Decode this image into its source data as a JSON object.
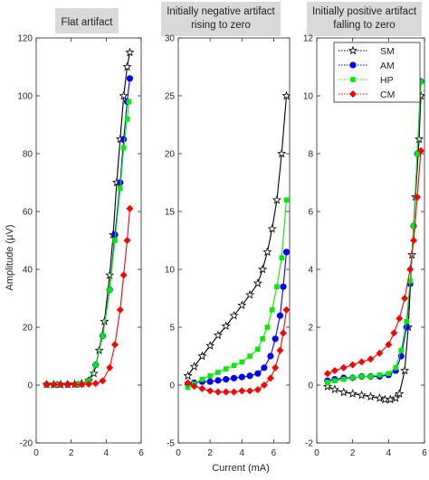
{
  "figure": {
    "ylabel": "Amplitude (µV)",
    "xlabel": "Current (mA)"
  },
  "colors": {
    "SM": "#000000",
    "AM": "#0000ff",
    "HP": "#00ee00",
    "CM": "#ff0000",
    "title_box": "#d9d9d9"
  },
  "chart_data": [
    {
      "type": "line",
      "title": "Flat artifact",
      "xlim": [
        0,
        6
      ],
      "ylim": [
        -20,
        120
      ],
      "xticks": [
        0,
        2,
        4,
        6
      ],
      "yticks": [
        -20,
        0,
        20,
        40,
        60,
        80,
        100,
        120
      ],
      "xtick_labels": [
        "0",
        "2",
        "4",
        "6"
      ],
      "ytick_labels": [
        "-20",
        "0",
        "20",
        "40",
        "60",
        "80",
        "100",
        "120"
      ],
      "grid": false,
      "series": [
        {
          "name": "SM",
          "marker": "star",
          "x": [
            0.6,
            1.0,
            1.4,
            1.8,
            2.2,
            2.6,
            3.0,
            3.3,
            3.6,
            3.9,
            4.2,
            4.4,
            4.6,
            4.8,
            5.0,
            5.2,
            5.35
          ],
          "y": [
            0.2,
            0.2,
            0.2,
            0.2,
            0.3,
            0.5,
            1.5,
            4,
            12,
            22,
            38,
            52,
            70,
            85,
            100,
            110,
            115
          ]
        },
        {
          "name": "AM",
          "marker": "circle",
          "x": [
            0.6,
            1.2,
            1.8,
            2.4,
            3.0,
            3.4,
            3.8,
            4.2,
            4.5,
            4.8,
            5.0,
            5.2,
            5.35
          ],
          "y": [
            0.2,
            0.2,
            0.2,
            0.3,
            1.5,
            7,
            17,
            33,
            52,
            70,
            85,
            98,
            106
          ]
        },
        {
          "name": "HP",
          "marker": "square",
          "x": [
            0.6,
            1.2,
            1.8,
            2.4,
            3.0,
            3.4,
            3.8,
            4.2,
            4.5,
            4.8,
            5.0,
            5.2,
            5.3
          ],
          "y": [
            0.2,
            0.2,
            0.2,
            0.3,
            1.5,
            7,
            17,
            33,
            50,
            68,
            82,
            92,
            98
          ]
        },
        {
          "name": "CM",
          "marker": "diamond",
          "x": [
            0.6,
            1.0,
            1.4,
            1.8,
            2.2,
            2.6,
            3.0,
            3.4,
            3.8,
            4.2,
            4.5,
            4.8,
            5.0,
            5.2,
            5.35
          ],
          "y": [
            0.2,
            0.2,
            0.2,
            0.2,
            0.2,
            0.2,
            0.3,
            0.6,
            1.5,
            6,
            14,
            26,
            38,
            50,
            61
          ]
        }
      ]
    },
    {
      "type": "line",
      "title": "Initially negative artifact rising to zero",
      "xlim": [
        0,
        7
      ],
      "ylim": [
        -5,
        30
      ],
      "xticks": [
        0,
        2,
        4,
        6
      ],
      "yticks": [
        -5,
        0,
        5,
        10,
        15,
        20,
        25,
        30
      ],
      "xtick_labels": [
        "0",
        "2",
        "4",
        "6"
      ],
      "ytick_labels": [
        "-5",
        "0",
        "5",
        "10",
        "15",
        "20",
        "25",
        "30"
      ],
      "grid": false,
      "series": [
        {
          "name": "SM",
          "marker": "star",
          "x": [
            0.6,
            1.0,
            1.5,
            2.0,
            2.5,
            3.0,
            3.5,
            4.0,
            4.5,
            5.0,
            5.3,
            5.6,
            5.9,
            6.2,
            6.5,
            6.8
          ],
          "y": [
            0.8,
            1.6,
            2.5,
            3.4,
            4.3,
            5.1,
            6.0,
            6.9,
            7.8,
            8.8,
            10.0,
            11.5,
            13.5,
            16.0,
            20.0,
            25.0
          ]
        },
        {
          "name": "AM",
          "marker": "circle",
          "x": [
            0.6,
            1.0,
            1.5,
            2.0,
            2.5,
            3.0,
            3.5,
            4.0,
            4.5,
            5.0,
            5.4,
            5.8,
            6.1,
            6.4,
            6.6,
            6.8
          ],
          "y": [
            0.1,
            0.2,
            0.3,
            0.3,
            0.4,
            0.5,
            0.6,
            0.7,
            0.8,
            1.0,
            1.5,
            2.5,
            4.0,
            6.0,
            8.5,
            11.5
          ]
        },
        {
          "name": "HP",
          "marker": "square",
          "x": [
            0.6,
            1.0,
            1.5,
            2.0,
            2.5,
            3.0,
            3.5,
            4.0,
            4.5,
            5.0,
            5.3,
            5.6,
            5.9,
            6.2,
            6.5,
            6.8
          ],
          "y": [
            -0.2,
            0.1,
            0.5,
            0.8,
            1.1,
            1.4,
            1.7,
            2.0,
            2.5,
            3.1,
            4.0,
            5.0,
            6.5,
            8.5,
            11.0,
            16.0
          ]
        },
        {
          "name": "CM",
          "marker": "diamond",
          "x": [
            0.6,
            1.0,
            1.5,
            2.0,
            2.5,
            3.0,
            3.5,
            4.0,
            4.5,
            5.0,
            5.4,
            5.8,
            6.1,
            6.4,
            6.6,
            6.8
          ],
          "y": [
            0.2,
            -0.1,
            -0.3,
            -0.5,
            -0.6,
            -0.6,
            -0.6,
            -0.5,
            -0.5,
            -0.4,
            0.0,
            0.6,
            1.5,
            3.0,
            4.5,
            6.5
          ]
        }
      ]
    },
    {
      "type": "line",
      "title": "Initially positive artifact falling to zero",
      "xlim": [
        0,
        6
      ],
      "ylim": [
        -2,
        12
      ],
      "xticks": [
        0,
        2,
        4,
        6
      ],
      "yticks": [
        -2,
        0,
        2,
        4,
        6,
        8,
        10,
        12
      ],
      "xtick_labels": [
        "0",
        "2",
        "4",
        "6"
      ],
      "ytick_labels": [
        "-2",
        "0",
        "2",
        "4",
        "6",
        "8",
        "10",
        "12"
      ],
      "grid": false,
      "legend": "top-right",
      "series": [
        {
          "name": "SM",
          "marker": "star",
          "x": [
            0.6,
            1.0,
            1.5,
            2.0,
            2.5,
            3.0,
            3.5,
            3.8,
            4.1,
            4.4,
            4.6,
            4.9,
            5.1,
            5.3,
            5.5,
            5.7,
            5.8
          ],
          "y": [
            -0.05,
            -0.15,
            -0.25,
            -0.3,
            -0.35,
            -0.4,
            -0.45,
            -0.5,
            -0.5,
            -0.45,
            -0.3,
            0.5,
            2.0,
            4.5,
            6.5,
            8.5,
            10.0
          ]
        },
        {
          "name": "AM",
          "marker": "circle",
          "x": [
            0.6,
            1.0,
            1.5,
            2.0,
            2.5,
            3.0,
            3.5,
            4.0,
            4.4,
            4.7,
            5.0,
            5.2,
            5.4,
            5.6,
            5.8
          ],
          "y": [
            0.15,
            0.2,
            0.25,
            0.25,
            0.3,
            0.3,
            0.3,
            0.35,
            0.5,
            1.0,
            2.0,
            3.5,
            5.5,
            8.0,
            10.5
          ]
        },
        {
          "name": "HP",
          "marker": "square",
          "x": [
            0.6,
            1.0,
            1.5,
            2.0,
            2.5,
            3.0,
            3.5,
            4.0,
            4.4,
            4.7,
            5.0,
            5.2,
            5.4,
            5.6,
            5.8
          ],
          "y": [
            0.1,
            0.15,
            0.2,
            0.25,
            0.3,
            0.3,
            0.35,
            0.4,
            0.6,
            1.2,
            2.2,
            3.6,
            5.5,
            8.0,
            10.5
          ]
        },
        {
          "name": "CM",
          "marker": "diamond",
          "x": [
            0.6,
            1.0,
            1.5,
            2.0,
            2.5,
            3.0,
            3.5,
            4.0,
            4.3,
            4.6,
            4.9,
            5.2,
            5.4,
            5.6,
            5.8
          ],
          "y": [
            0.4,
            0.5,
            0.6,
            0.7,
            0.8,
            0.9,
            1.1,
            1.4,
            1.8,
            2.3,
            3.0,
            4.0,
            5.0,
            6.5,
            8.1
          ]
        }
      ]
    }
  ]
}
